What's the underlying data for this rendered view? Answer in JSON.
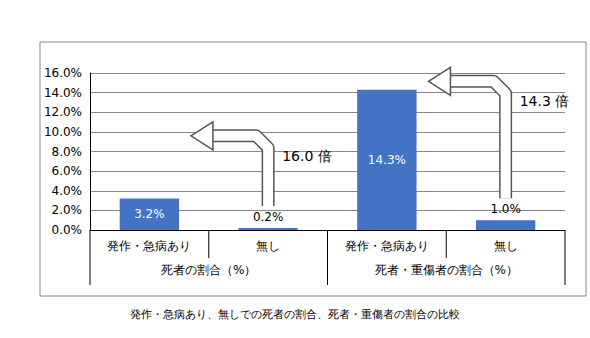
{
  "chart_data": {
    "type": "bar",
    "caption": "発作・急病あり、無しでの死者の割合、死者・重傷者の割合の比較",
    "categories": [
      "発作・急病あり",
      "無し",
      "発作・急病あり",
      "無し"
    ],
    "category_groups": [
      {
        "label": "死者の割合（%）",
        "size": 2
      },
      {
        "label": "死者・重傷者の割合（%）",
        "size": 2
      }
    ],
    "values": [
      3.2,
      0.2,
      14.3,
      1.0
    ],
    "value_labels": [
      "3.2%",
      "0.2%",
      "14.3%",
      "1.0%"
    ],
    "color": "#4472c4",
    "data_labels": true,
    "ylim": [
      0,
      16
    ],
    "yticks": [
      {
        "value": 0,
        "label": "0.0%"
      },
      {
        "value": 2,
        "label": "2.0%"
      },
      {
        "value": 4,
        "label": "4.0%"
      },
      {
        "value": 6,
        "label": "6.0%"
      },
      {
        "value": 8,
        "label": "8.0%"
      },
      {
        "value": 10,
        "label": "10.0%"
      },
      {
        "value": 12,
        "label": "12.0%"
      },
      {
        "value": 14,
        "label": "14.0%"
      },
      {
        "value": 16,
        "label": "16.0%"
      }
    ],
    "grid": true,
    "annotations": [
      {
        "text": "16.0 倍",
        "from": 1,
        "to": 0
      },
      {
        "text": "14.3 倍",
        "from": 3,
        "to": 2
      }
    ]
  }
}
